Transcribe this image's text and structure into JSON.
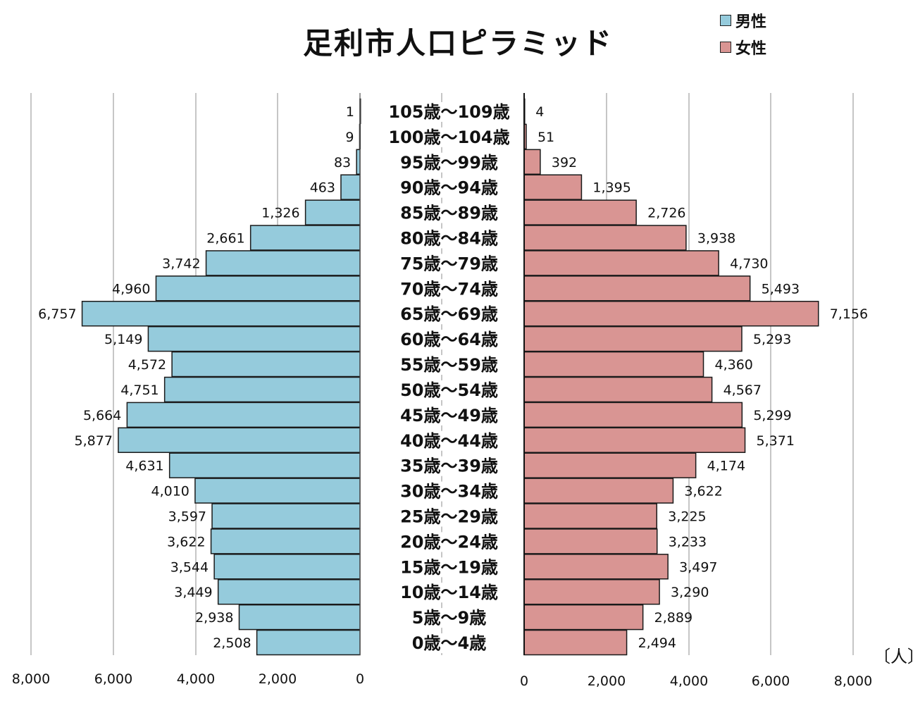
{
  "title": "足利市人口ピラミッド",
  "unit_label": "〔人〕",
  "colors": {
    "male": "#95cbdc",
    "female": "#d99593",
    "grid": "#a0a0a0",
    "bar_stroke": "#1a1a1a"
  },
  "chart_data": {
    "type": "bar",
    "orientation": "horizontal",
    "layout": "population-pyramid",
    "categories": [
      "105歳～109歳",
      "100歳～104歳",
      "95歳～99歳",
      "90歳～94歳",
      "85歳～89歳",
      "80歳～84歳",
      "75歳～79歳",
      "70歳～74歳",
      "65歳～69歳",
      "60歳～64歳",
      "55歳～59歳",
      "50歳～54歳",
      "45歳～49歳",
      "40歳～44歳",
      "35歳～39歳",
      "30歳～34歳",
      "25歳～29歳",
      "20歳～24歳",
      "15歳～19歳",
      "10歳～14歳",
      "5歳～9歳",
      "0歳～4歳"
    ],
    "series": [
      {
        "name": "男性",
        "values": [
          1,
          9,
          83,
          463,
          1326,
          2661,
          3742,
          4960,
          6757,
          5149,
          4572,
          4751,
          5664,
          5877,
          4631,
          4010,
          3597,
          3622,
          3544,
          3449,
          2938,
          2508
        ],
        "labels": [
          "1",
          "9",
          "83",
          "463",
          "1,326",
          "2,661",
          "3,742",
          "4,960",
          "6,757",
          "5,149",
          "4,572",
          "4,751",
          "5,664",
          "5,877",
          "4,631",
          "4,010",
          "3,597",
          "3,622",
          "3,544",
          "3,449",
          "2,938",
          "2,508"
        ]
      },
      {
        "name": "女性",
        "values": [
          4,
          51,
          392,
          1395,
          2726,
          3938,
          4730,
          5493,
          7156,
          5293,
          4360,
          4567,
          5299,
          5371,
          4174,
          3622,
          3225,
          3233,
          3497,
          3290,
          2889,
          2494
        ],
        "labels": [
          "4",
          "51",
          "392",
          "1,395",
          "2,726",
          "3,938",
          "4,730",
          "5,493",
          "7,156",
          "5,293",
          "4,360",
          "4,567",
          "5,299",
          "5,371",
          "4,174",
          "3,622",
          "3,225",
          "3,233",
          "3,497",
          "3,290",
          "2,889",
          "2,494"
        ]
      }
    ],
    "xlim": [
      0,
      8000
    ],
    "male_ticks": [
      "8,000",
      "6,000",
      "4,000",
      "2,000",
      "0"
    ],
    "female_ticks": [
      "0",
      "2,000",
      "4,000",
      "6,000",
      "8,000"
    ],
    "grid": true,
    "legend_position": "top-right"
  }
}
